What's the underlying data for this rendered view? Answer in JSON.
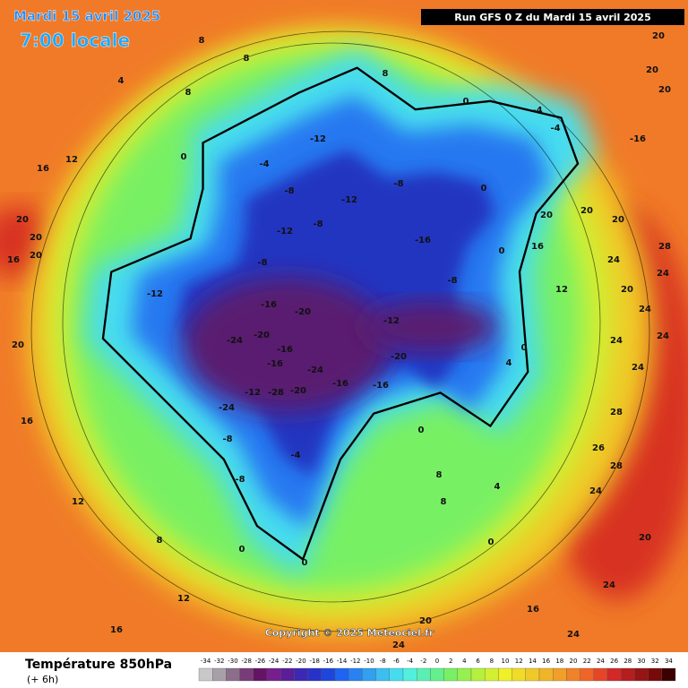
{
  "header": {
    "date": "Mardi 15 avril 2025",
    "time": "7:00 locale",
    "run": "Run GFS 0 Z du Mardi 15 avril 2025"
  },
  "map": {
    "copyright": "Copyright © 2025 Meteociel.fr",
    "labels": [
      -12,
      -4,
      -8,
      -12,
      -8,
      -16,
      -8,
      -12,
      -8,
      -12,
      -16,
      -20,
      -24,
      -20,
      -16,
      -16,
      -24,
      -28,
      -20,
      -12,
      -24,
      -16,
      -16,
      -20,
      -12,
      -8,
      -8,
      -8,
      -4,
      0,
      0,
      8,
      12,
      16,
      12,
      16,
      20,
      20,
      20,
      20,
      16,
      12,
      16,
      0,
      4,
      8,
      8,
      8,
      8,
      0,
      -4,
      -16,
      20,
      20,
      20,
      20,
      20,
      20,
      28,
      24,
      24,
      20,
      24,
      24,
      24,
      24,
      28,
      26,
      28,
      24,
      20,
      24,
      24,
      16,
      20,
      24,
      4,
      0,
      8,
      8,
      0,
      -4,
      0,
      16,
      12,
      0,
      0,
      4
    ]
  },
  "legend": {
    "title": "Température 850hPa",
    "lead": "(+ 6h)",
    "ticks": [
      -34,
      -32,
      -30,
      -28,
      -26,
      -24,
      -22,
      -20,
      -18,
      -16,
      -14,
      -12,
      -10,
      -8,
      -6,
      -4,
      -2,
      0,
      2,
      4,
      6,
      8,
      10,
      12,
      14,
      16,
      18,
      20,
      22,
      24,
      26,
      28,
      30,
      32,
      34
    ],
    "colors": [
      "#c8c8c8",
      "#a8a0a8",
      "#8c6e8c",
      "#783c78",
      "#641464",
      "#781e8c",
      "#5a1e96",
      "#3c28b4",
      "#2832c8",
      "#1e46dc",
      "#1e64f0",
      "#2882f0",
      "#32a0f0",
      "#3cbef0",
      "#46dcf0",
      "#50f0dc",
      "#5af0b4",
      "#64f08c",
      "#78f064",
      "#96f050",
      "#b4f03c",
      "#d2f032",
      "#f0f028",
      "#f0dc28",
      "#f0c828",
      "#f0b428",
      "#f0a028",
      "#f08228",
      "#f06428",
      "#e64628",
      "#d22828",
      "#b41e1e",
      "#961414",
      "#780a0a",
      "#3c0000"
    ]
  }
}
